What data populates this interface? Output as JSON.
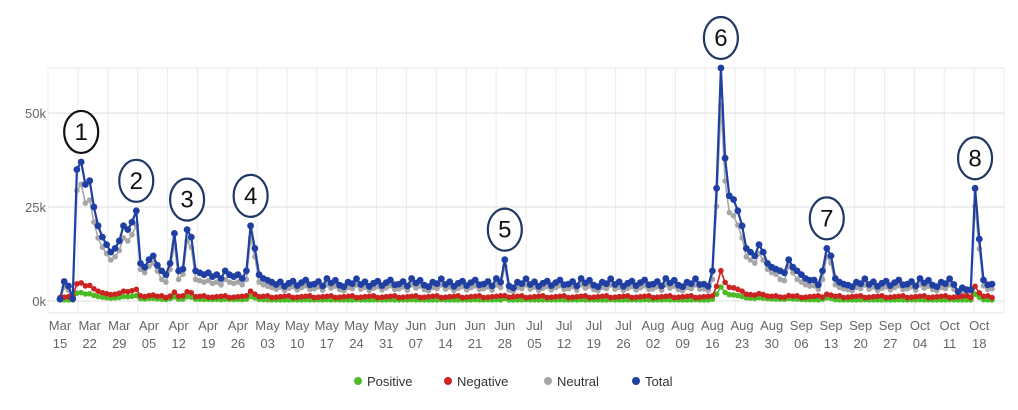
{
  "chart_data": {
    "type": "line",
    "title": "",
    "xlabel": "",
    "ylabel": "",
    "ylim": [
      0,
      62000
    ],
    "y_ticks": [
      {
        "value": 0,
        "label": "0k"
      },
      {
        "value": 25000,
        "label": "25k"
      },
      {
        "value": 50000,
        "label": "50k"
      }
    ],
    "x_ticks": [
      {
        "month": "Mar",
        "day": "15",
        "index": 0
      },
      {
        "month": "Mar",
        "day": "22",
        "index": 7
      },
      {
        "month": "Mar",
        "day": "29",
        "index": 14
      },
      {
        "month": "Apr",
        "day": "05",
        "index": 21
      },
      {
        "month": "Apr",
        "day": "12",
        "index": 28
      },
      {
        "month": "Apr",
        "day": "19",
        "index": 35
      },
      {
        "month": "Apr",
        "day": "26",
        "index": 42
      },
      {
        "month": "May",
        "day": "03",
        "index": 49
      },
      {
        "month": "May",
        "day": "10",
        "index": 56
      },
      {
        "month": "May",
        "day": "17",
        "index": 63
      },
      {
        "month": "May",
        "day": "24",
        "index": 70
      },
      {
        "month": "May",
        "day": "31",
        "index": 77
      },
      {
        "month": "Jun",
        "day": "07",
        "index": 84
      },
      {
        "month": "Jun",
        "day": "14",
        "index": 91
      },
      {
        "month": "Jun",
        "day": "21",
        "index": 98
      },
      {
        "month": "Jun",
        "day": "28",
        "index": 105
      },
      {
        "month": "Jul",
        "day": "05",
        "index": 112
      },
      {
        "month": "Jul",
        "day": "12",
        "index": 119
      },
      {
        "month": "Jul",
        "day": "19",
        "index": 126
      },
      {
        "month": "Jul",
        "day": "26",
        "index": 133
      },
      {
        "month": "Aug",
        "day": "02",
        "index": 140
      },
      {
        "month": "Aug",
        "day": "09",
        "index": 147
      },
      {
        "month": "Aug",
        "day": "16",
        "index": 154
      },
      {
        "month": "Aug",
        "day": "23",
        "index": 161
      },
      {
        "month": "Aug",
        "day": "30",
        "index": 168
      },
      {
        "month": "Sep",
        "day": "06",
        "index": 175
      },
      {
        "month": "Sep",
        "day": "13",
        "index": 182
      },
      {
        "month": "Sep",
        "day": "20",
        "index": 189
      },
      {
        "month": "Sep",
        "day": "27",
        "index": 196
      },
      {
        "month": "Oct",
        "day": "04",
        "index": 203
      },
      {
        "month": "Oct",
        "day": "11",
        "index": 210
      },
      {
        "month": "Oct",
        "day": "18",
        "index": 217
      }
    ],
    "x_count": 221,
    "base_total": [
      4500,
      5200,
      4000,
      6000,
      4800,
      5500,
      4200,
      3800,
      5000,
      4600,
      5900,
      4400,
      5100,
      3900,
      4700,
      5300,
      4100,
      4900,
      5600,
      4300
    ],
    "total_points": [
      [
        0,
        500
      ],
      [
        3,
        600
      ],
      [
        4,
        35000
      ],
      [
        5,
        37000
      ],
      [
        6,
        31000
      ],
      [
        7,
        32000
      ],
      [
        8,
        25000
      ],
      [
        9,
        20000
      ],
      [
        10,
        17000
      ],
      [
        11,
        15000
      ],
      [
        12,
        13000
      ],
      [
        13,
        14000
      ],
      [
        14,
        16000
      ],
      [
        15,
        20000
      ],
      [
        16,
        19000
      ],
      [
        17,
        21000
      ],
      [
        18,
        24000
      ],
      [
        19,
        10000
      ],
      [
        20,
        9000
      ],
      [
        21,
        11000
      ],
      [
        22,
        12000
      ],
      [
        23,
        9500
      ],
      [
        24,
        8000
      ],
      [
        25,
        7000
      ],
      [
        26,
        10000
      ],
      [
        27,
        18000
      ],
      [
        28,
        8000
      ],
      [
        29,
        8500
      ],
      [
        30,
        19000
      ],
      [
        31,
        17000
      ],
      [
        32,
        8000
      ],
      [
        33,
        7500
      ],
      [
        34,
        7000
      ],
      [
        35,
        7500
      ],
      [
        36,
        6500
      ],
      [
        37,
        7000
      ],
      [
        38,
        6000
      ],
      [
        39,
        8000
      ],
      [
        40,
        7000
      ],
      [
        41,
        6500
      ],
      [
        42,
        7000
      ],
      [
        43,
        6000
      ],
      [
        44,
        8000
      ],
      [
        45,
        20000
      ],
      [
        46,
        14000
      ],
      [
        47,
        7000
      ],
      [
        48,
        6000
      ],
      [
        49,
        5500
      ],
      [
        50,
        5000
      ],
      [
        104,
        5000
      ],
      [
        105,
        11000
      ],
      [
        106,
        4000
      ],
      [
        107,
        3500
      ],
      [
        152,
        4500
      ],
      [
        154,
        8000
      ],
      [
        155,
        30000
      ],
      [
        156,
        62000
      ],
      [
        157,
        38000
      ],
      [
        158,
        28000
      ],
      [
        159,
        27000
      ],
      [
        160,
        24000
      ],
      [
        161,
        20000
      ],
      [
        162,
        14000
      ],
      [
        163,
        13000
      ],
      [
        164,
        12000
      ],
      [
        165,
        15000
      ],
      [
        166,
        13000
      ],
      [
        167,
        10000
      ],
      [
        168,
        9000
      ],
      [
        169,
        8500
      ],
      [
        170,
        8000
      ],
      [
        171,
        7500
      ],
      [
        172,
        11000
      ],
      [
        173,
        9000
      ],
      [
        174,
        8000
      ],
      [
        175,
        7000
      ],
      [
        176,
        6000
      ],
      [
        177,
        5500
      ],
      [
        180,
        8000
      ],
      [
        181,
        14000
      ],
      [
        182,
        12000
      ],
      [
        183,
        6000
      ],
      [
        184,
        5000
      ],
      [
        185,
        4500
      ],
      [
        212,
        2500
      ],
      [
        213,
        3500
      ],
      [
        214,
        3000
      ],
      [
        215,
        3000
      ],
      [
        216,
        30000
      ],
      [
        217,
        16500
      ]
    ],
    "series": [
      {
        "name": "Positive",
        "color": "#4dbb28"
      },
      {
        "name": "Negative",
        "color": "#cc2222"
      },
      {
        "name": "Neutral",
        "color": "#a6a6a6"
      },
      {
        "name": "Total",
        "color": "#1f3fa3"
      }
    ],
    "annotations": [
      {
        "label": "1",
        "index": 5,
        "value": 37000
      },
      {
        "label": "2",
        "index": 18,
        "value": 24000
      },
      {
        "label": "3",
        "index": 30,
        "value": 19000
      },
      {
        "label": "4",
        "index": 45,
        "value": 20000
      },
      {
        "label": "5",
        "index": 105,
        "value": 11000
      },
      {
        "label": "6",
        "index": 156,
        "value": 62000
      },
      {
        "label": "7",
        "index": 181,
        "value": 14000
      },
      {
        "label": "8",
        "index": 216,
        "value": 30000
      }
    ],
    "legend": "bottom-center",
    "grid": true
  }
}
